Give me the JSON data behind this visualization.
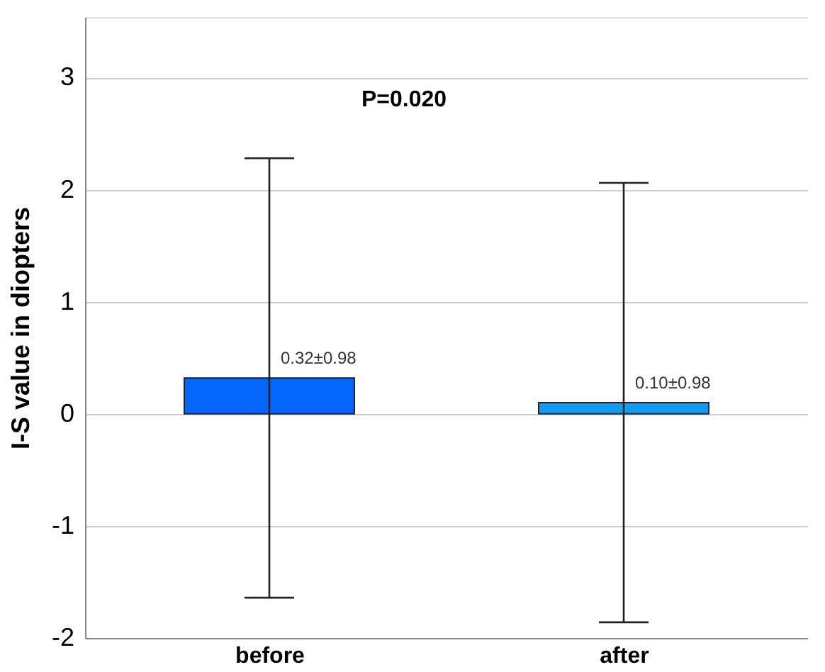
{
  "chart_data": {
    "type": "bar",
    "ylabel": "I-S value in diopters",
    "categories": [
      "before",
      "after"
    ],
    "values": [
      0.32,
      0.1
    ],
    "colors": [
      "#0466fc",
      "#119cf4"
    ],
    "errors": [
      [
        -1.64,
        2.28
      ],
      [
        -1.86,
        2.06
      ]
    ],
    "value_labels": [
      "0.32±0.98",
      "0.10±0.98"
    ],
    "annotations": [
      "P=0.020"
    ],
    "ylim": [
      -2,
      3.54
    ],
    "yticks": [
      -2,
      -1,
      0,
      1,
      2,
      3
    ],
    "grid": "y"
  }
}
